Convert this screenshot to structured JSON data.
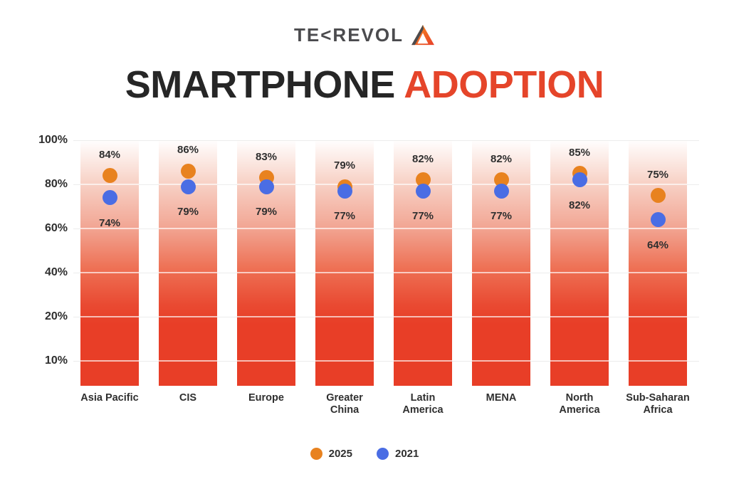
{
  "logo": {
    "brand": "TEKREVOL",
    "text_pre": "TE",
    "text_chevron": "<",
    "text_post": "REVOL"
  },
  "title": {
    "part1": "SMARTPHONE",
    "part2": "ADOPTION"
  },
  "colors": {
    "title_dark": "#262626",
    "title_red": "#e5452a",
    "bar_red": "#e83e27",
    "dot_2025": "#e8821f",
    "dot_2021": "#4a6de4",
    "gridline": "#ececec",
    "text_dark": "#2f2f2f",
    "logo_gray": "#4b4b4e"
  },
  "chart_data": {
    "type": "scatter",
    "title": "Smartphone Adoption",
    "categories": [
      "Asia Pacific",
      "CIS",
      "Europe",
      "Greater China",
      "Latin America",
      "MENA",
      "North America",
      "Sub-Saharan Africa"
    ],
    "category_lines": [
      [
        "Asia Pacific"
      ],
      [
        "CIS"
      ],
      [
        "Europe"
      ],
      [
        "Greater",
        "China"
      ],
      [
        "Latin",
        "America"
      ],
      [
        "MENA"
      ],
      [
        "North",
        "America"
      ],
      [
        "Sub-Saharan",
        "Africa"
      ]
    ],
    "series": [
      {
        "name": "2025",
        "color": "#e8821f",
        "values": [
          84,
          86,
          83,
          79,
          82,
          82,
          85,
          75
        ]
      },
      {
        "name": "2021",
        "color": "#4a6de4",
        "values": [
          74,
          79,
          79,
          77,
          77,
          77,
          82,
          64
        ]
      }
    ],
    "value_suffix": "%",
    "y_ticks": {
      "labels": [
        "100%",
        "80%",
        "60%",
        "40%",
        "20%",
        "10%"
      ],
      "values": [
        100,
        80,
        60,
        40,
        20,
        10
      ]
    },
    "grid": true,
    "legend_position": "bottom",
    "column_style": "red-gradient-fade"
  },
  "legend": {
    "items": [
      {
        "label": "2025",
        "color": "#e8821f"
      },
      {
        "label": "2021",
        "color": "#4a6de4"
      }
    ]
  }
}
